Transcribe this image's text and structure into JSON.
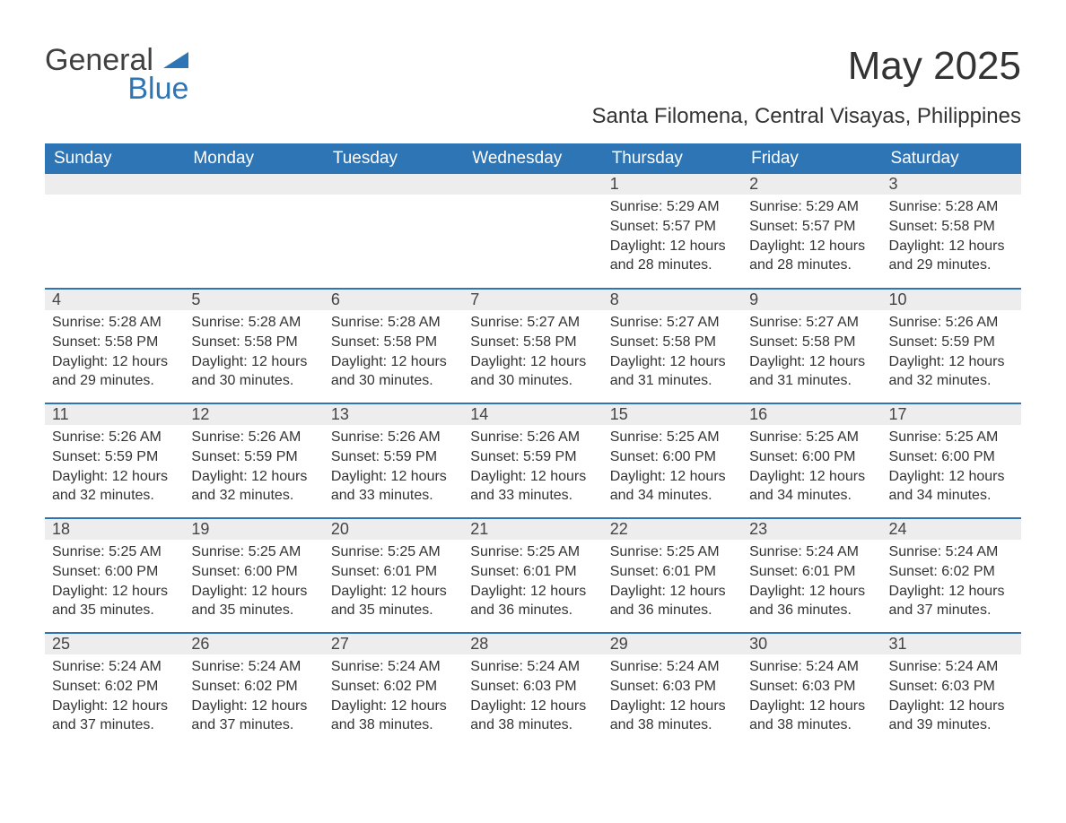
{
  "logo": {
    "general": "General",
    "blue": "Blue"
  },
  "title": "May 2025",
  "location": "Santa Filomena, Central Visayas, Philippines",
  "colors": {
    "header_bg": "#2e75b6",
    "header_text": "#ffffff",
    "daynum_bg": "#ededed",
    "text": "#333333",
    "separator": "#2e75b6",
    "logo_gray": "#404040",
    "logo_blue": "#2e75b6",
    "page_bg": "#ffffff"
  },
  "fonts": {
    "family": "Segoe UI, Arial, sans-serif",
    "title_size_pt": 33,
    "location_size_pt": 18,
    "weekday_size_pt": 14,
    "daynum_size_pt": 14,
    "body_size_pt": 12
  },
  "weekdays": [
    "Sunday",
    "Monday",
    "Tuesday",
    "Wednesday",
    "Thursday",
    "Friday",
    "Saturday"
  ],
  "weeks": [
    [
      null,
      null,
      null,
      null,
      {
        "n": "1",
        "sunrise": "Sunrise: 5:29 AM",
        "sunset": "Sunset: 5:57 PM",
        "daylight": "Daylight: 12 hours and 28 minutes."
      },
      {
        "n": "2",
        "sunrise": "Sunrise: 5:29 AM",
        "sunset": "Sunset: 5:57 PM",
        "daylight": "Daylight: 12 hours and 28 minutes."
      },
      {
        "n": "3",
        "sunrise": "Sunrise: 5:28 AM",
        "sunset": "Sunset: 5:58 PM",
        "daylight": "Daylight: 12 hours and 29 minutes."
      }
    ],
    [
      {
        "n": "4",
        "sunrise": "Sunrise: 5:28 AM",
        "sunset": "Sunset: 5:58 PM",
        "daylight": "Daylight: 12 hours and 29 minutes."
      },
      {
        "n": "5",
        "sunrise": "Sunrise: 5:28 AM",
        "sunset": "Sunset: 5:58 PM",
        "daylight": "Daylight: 12 hours and 30 minutes."
      },
      {
        "n": "6",
        "sunrise": "Sunrise: 5:28 AM",
        "sunset": "Sunset: 5:58 PM",
        "daylight": "Daylight: 12 hours and 30 minutes."
      },
      {
        "n": "7",
        "sunrise": "Sunrise: 5:27 AM",
        "sunset": "Sunset: 5:58 PM",
        "daylight": "Daylight: 12 hours and 30 minutes."
      },
      {
        "n": "8",
        "sunrise": "Sunrise: 5:27 AM",
        "sunset": "Sunset: 5:58 PM",
        "daylight": "Daylight: 12 hours and 31 minutes."
      },
      {
        "n": "9",
        "sunrise": "Sunrise: 5:27 AM",
        "sunset": "Sunset: 5:58 PM",
        "daylight": "Daylight: 12 hours and 31 minutes."
      },
      {
        "n": "10",
        "sunrise": "Sunrise: 5:26 AM",
        "sunset": "Sunset: 5:59 PM",
        "daylight": "Daylight: 12 hours and 32 minutes."
      }
    ],
    [
      {
        "n": "11",
        "sunrise": "Sunrise: 5:26 AM",
        "sunset": "Sunset: 5:59 PM",
        "daylight": "Daylight: 12 hours and 32 minutes."
      },
      {
        "n": "12",
        "sunrise": "Sunrise: 5:26 AM",
        "sunset": "Sunset: 5:59 PM",
        "daylight": "Daylight: 12 hours and 32 minutes."
      },
      {
        "n": "13",
        "sunrise": "Sunrise: 5:26 AM",
        "sunset": "Sunset: 5:59 PM",
        "daylight": "Daylight: 12 hours and 33 minutes."
      },
      {
        "n": "14",
        "sunrise": "Sunrise: 5:26 AM",
        "sunset": "Sunset: 5:59 PM",
        "daylight": "Daylight: 12 hours and 33 minutes."
      },
      {
        "n": "15",
        "sunrise": "Sunrise: 5:25 AM",
        "sunset": "Sunset: 6:00 PM",
        "daylight": "Daylight: 12 hours and 34 minutes."
      },
      {
        "n": "16",
        "sunrise": "Sunrise: 5:25 AM",
        "sunset": "Sunset: 6:00 PM",
        "daylight": "Daylight: 12 hours and 34 minutes."
      },
      {
        "n": "17",
        "sunrise": "Sunrise: 5:25 AM",
        "sunset": "Sunset: 6:00 PM",
        "daylight": "Daylight: 12 hours and 34 minutes."
      }
    ],
    [
      {
        "n": "18",
        "sunrise": "Sunrise: 5:25 AM",
        "sunset": "Sunset: 6:00 PM",
        "daylight": "Daylight: 12 hours and 35 minutes."
      },
      {
        "n": "19",
        "sunrise": "Sunrise: 5:25 AM",
        "sunset": "Sunset: 6:00 PM",
        "daylight": "Daylight: 12 hours and 35 minutes."
      },
      {
        "n": "20",
        "sunrise": "Sunrise: 5:25 AM",
        "sunset": "Sunset: 6:01 PM",
        "daylight": "Daylight: 12 hours and 35 minutes."
      },
      {
        "n": "21",
        "sunrise": "Sunrise: 5:25 AM",
        "sunset": "Sunset: 6:01 PM",
        "daylight": "Daylight: 12 hours and 36 minutes."
      },
      {
        "n": "22",
        "sunrise": "Sunrise: 5:25 AM",
        "sunset": "Sunset: 6:01 PM",
        "daylight": "Daylight: 12 hours and 36 minutes."
      },
      {
        "n": "23",
        "sunrise": "Sunrise: 5:24 AM",
        "sunset": "Sunset: 6:01 PM",
        "daylight": "Daylight: 12 hours and 36 minutes."
      },
      {
        "n": "24",
        "sunrise": "Sunrise: 5:24 AM",
        "sunset": "Sunset: 6:02 PM",
        "daylight": "Daylight: 12 hours and 37 minutes."
      }
    ],
    [
      {
        "n": "25",
        "sunrise": "Sunrise: 5:24 AM",
        "sunset": "Sunset: 6:02 PM",
        "daylight": "Daylight: 12 hours and 37 minutes."
      },
      {
        "n": "26",
        "sunrise": "Sunrise: 5:24 AM",
        "sunset": "Sunset: 6:02 PM",
        "daylight": "Daylight: 12 hours and 37 minutes."
      },
      {
        "n": "27",
        "sunrise": "Sunrise: 5:24 AM",
        "sunset": "Sunset: 6:02 PM",
        "daylight": "Daylight: 12 hours and 38 minutes."
      },
      {
        "n": "28",
        "sunrise": "Sunrise: 5:24 AM",
        "sunset": "Sunset: 6:03 PM",
        "daylight": "Daylight: 12 hours and 38 minutes."
      },
      {
        "n": "29",
        "sunrise": "Sunrise: 5:24 AM",
        "sunset": "Sunset: 6:03 PM",
        "daylight": "Daylight: 12 hours and 38 minutes."
      },
      {
        "n": "30",
        "sunrise": "Sunrise: 5:24 AM",
        "sunset": "Sunset: 6:03 PM",
        "daylight": "Daylight: 12 hours and 38 minutes."
      },
      {
        "n": "31",
        "sunrise": "Sunrise: 5:24 AM",
        "sunset": "Sunset: 6:03 PM",
        "daylight": "Daylight: 12 hours and 39 minutes."
      }
    ]
  ]
}
